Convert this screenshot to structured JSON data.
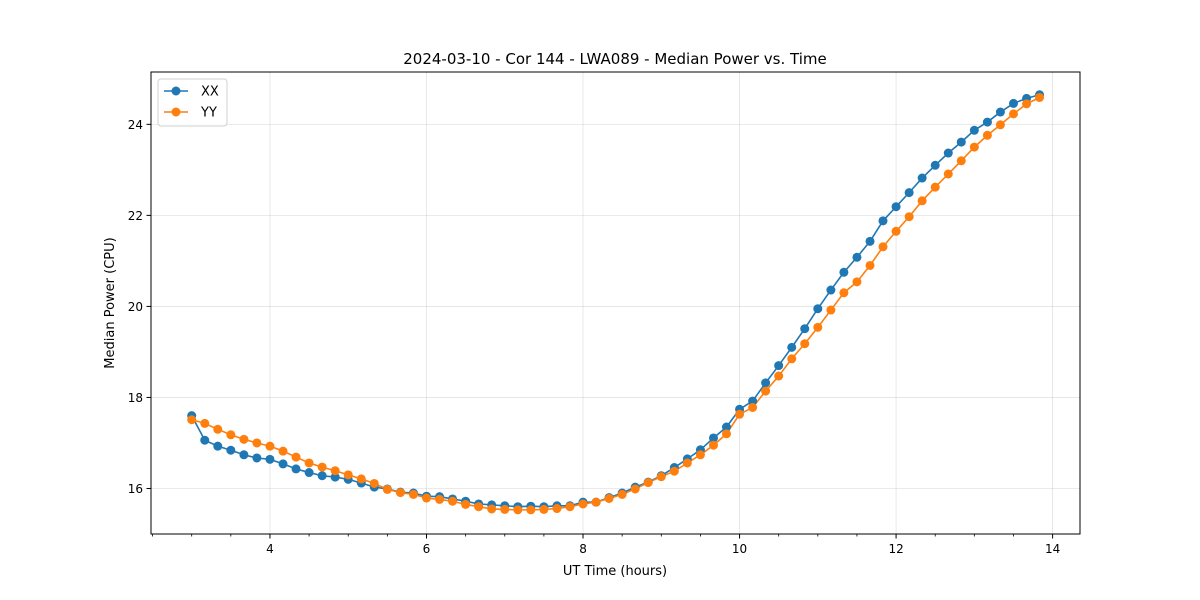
{
  "chart_data": {
    "type": "line",
    "title": "2024-03-10 - Cor 144 - LWA089 - Median Power vs. Time",
    "xlabel": "UT Time (hours)",
    "ylabel": "Median Power (CPU)",
    "xlim": [
      2.48,
      14.35
    ],
    "ylim": [
      15.0,
      25.15
    ],
    "xticks": [
      4,
      6,
      8,
      10,
      12,
      14
    ],
    "xtick_labels": [
      "4",
      "6",
      "8",
      "10",
      "12",
      "14"
    ],
    "xminor": [
      2.5,
      3.0,
      3.5,
      4.5,
      5.0,
      5.5,
      6.5,
      7.0,
      7.5,
      8.5,
      9.0,
      9.5,
      10.5,
      11.0,
      11.5,
      12.5,
      13.0,
      13.5
    ],
    "yticks": [
      16,
      18,
      20,
      22,
      24
    ],
    "ytick_labels": [
      "16",
      "18",
      "20",
      "22",
      "24"
    ],
    "grid": true,
    "legend_position": "top-left",
    "x": [
      3.0,
      3.167,
      3.333,
      3.5,
      3.667,
      3.833,
      4.0,
      4.167,
      4.333,
      4.5,
      4.667,
      4.833,
      5.0,
      5.167,
      5.333,
      5.5,
      5.667,
      5.833,
      6.0,
      6.167,
      6.333,
      6.5,
      6.667,
      6.833,
      7.0,
      7.167,
      7.333,
      7.5,
      7.667,
      7.833,
      8.0,
      8.167,
      8.333,
      8.5,
      8.667,
      8.833,
      9.0,
      9.167,
      9.333,
      9.5,
      9.667,
      9.833,
      10.0,
      10.167,
      10.333,
      10.5,
      10.667,
      10.833,
      11.0,
      11.167,
      11.333,
      11.5,
      11.667,
      11.833,
      12.0,
      12.167,
      12.333,
      12.5,
      12.667,
      12.833,
      13.0,
      13.167,
      13.333,
      13.5,
      13.667,
      13.833
    ],
    "series": [
      {
        "name": "XX",
        "color": "#1f77b4",
        "values": [
          17.6,
          17.06,
          16.93,
          16.84,
          16.74,
          16.67,
          16.64,
          16.54,
          16.43,
          16.35,
          16.28,
          16.25,
          16.2,
          16.12,
          16.03,
          15.99,
          15.92,
          15.9,
          15.83,
          15.82,
          15.77,
          15.72,
          15.66,
          15.64,
          15.62,
          15.6,
          15.61,
          15.6,
          15.62,
          15.62,
          15.7,
          15.7,
          15.8,
          15.9,
          16.03,
          16.14,
          16.28,
          16.46,
          16.65,
          16.85,
          17.11,
          17.35,
          17.74,
          17.92,
          18.32,
          18.7,
          19.1,
          19.51,
          19.95,
          20.36,
          20.75,
          21.08,
          21.43,
          21.88,
          22.19,
          22.5,
          22.82,
          23.1,
          23.37,
          23.61,
          23.87,
          24.05,
          24.27,
          24.46,
          24.57,
          24.65
        ]
      },
      {
        "name": "YY",
        "color": "#ff7f0e",
        "values": [
          17.51,
          17.43,
          17.3,
          17.18,
          17.08,
          17.0,
          16.93,
          16.82,
          16.69,
          16.56,
          16.47,
          16.39,
          16.3,
          16.21,
          16.11,
          15.98,
          15.91,
          15.87,
          15.79,
          15.76,
          15.72,
          15.65,
          15.6,
          15.55,
          15.54,
          15.53,
          15.53,
          15.54,
          15.56,
          15.6,
          15.66,
          15.7,
          15.78,
          15.87,
          15.99,
          16.13,
          16.26,
          16.38,
          16.56,
          16.74,
          16.95,
          17.2,
          17.63,
          17.78,
          18.14,
          18.47,
          18.85,
          19.18,
          19.54,
          19.92,
          20.3,
          20.54,
          20.9,
          21.31,
          21.65,
          21.97,
          22.32,
          22.62,
          22.91,
          23.2,
          23.5,
          23.76,
          23.99,
          24.23,
          24.45,
          24.59
        ]
      }
    ]
  }
}
